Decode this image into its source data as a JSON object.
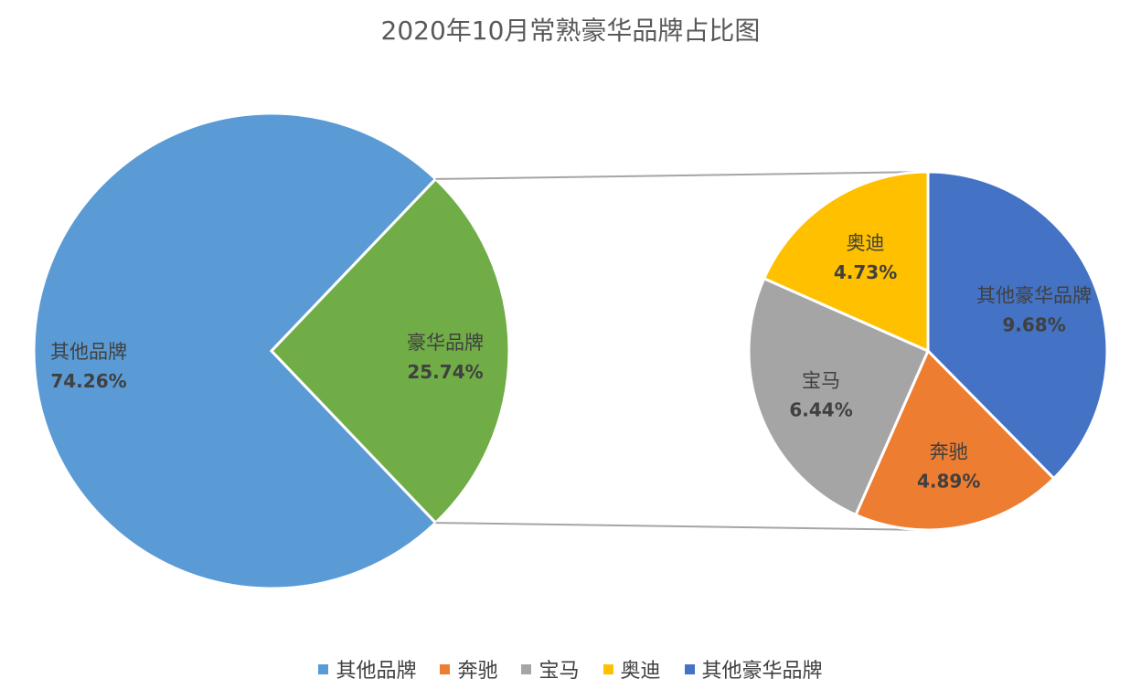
{
  "chart_data": {
    "type": "pie",
    "subtype": "pie-of-pie",
    "title": "2020年10月常熟豪华品牌占比图",
    "primary": {
      "slices": [
        {
          "name": "其他品牌",
          "value": 74.26,
          "label": "74.26%",
          "color": "#5B9BD5"
        },
        {
          "name": "豪华品牌",
          "value": 25.74,
          "label": "25.74%",
          "color": "#70AD47"
        }
      ]
    },
    "secondary": {
      "slices": [
        {
          "name": "其他豪华品牌",
          "value": 9.68,
          "label": "9.68%",
          "color": "#4472C4"
        },
        {
          "name": "奔驰",
          "value": 4.89,
          "label": "4.89%",
          "color": "#ED7D31"
        },
        {
          "name": "宝马",
          "value": 6.44,
          "label": "6.44%",
          "color": "#A5A5A5"
        },
        {
          "name": "奥迪",
          "value": 4.73,
          "label": "4.73%",
          "color": "#FFC000"
        }
      ]
    },
    "legend": {
      "position": "bottom",
      "entries": [
        {
          "name": "其他品牌",
          "color": "#5B9BD5"
        },
        {
          "name": "奔驰",
          "color": "#ED7D31"
        },
        {
          "name": "宝马",
          "color": "#A5A5A5"
        },
        {
          "name": "奥迪",
          "color": "#FFC000"
        },
        {
          "name": "其他豪华品牌",
          "color": "#4472C4"
        }
      ]
    }
  }
}
